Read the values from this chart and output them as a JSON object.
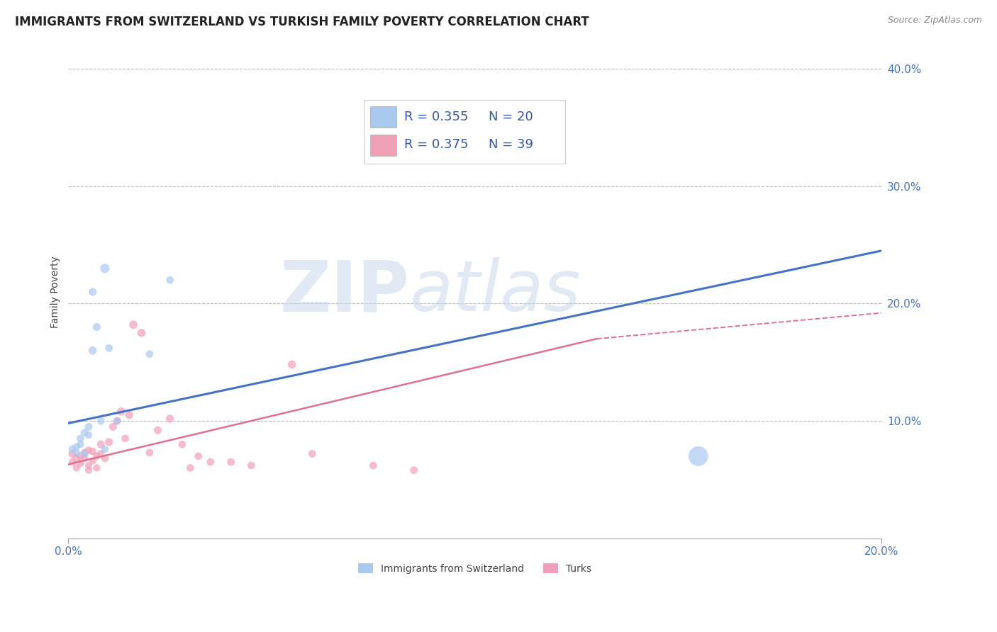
{
  "title": "IMMIGRANTS FROM SWITZERLAND VS TURKISH FAMILY POVERTY CORRELATION CHART",
  "source": "Source: ZipAtlas.com",
  "ylabel": "Family Poverty",
  "xlim": [
    0.0,
    0.2
  ],
  "ylim": [
    0.0,
    0.42
  ],
  "yticks": [
    0.0,
    0.1,
    0.2,
    0.3,
    0.4
  ],
  "ytick_labels": [
    "",
    "10.0%",
    "20.0%",
    "30.0%",
    "40.0%"
  ],
  "xticks": [
    0.0,
    0.2
  ],
  "xtick_labels": [
    "0.0%",
    "20.0%"
  ],
  "legend_r1": "R = 0.355",
  "legend_n1": "N = 20",
  "legend_r2": "R = 0.375",
  "legend_n2": "N = 39",
  "color_swiss": "#A8C8F0",
  "color_turks": "#F0A0B8",
  "bg_color": "#FFFFFF",
  "grid_color": "#BBBBBB",
  "swiss_scatter_x": [
    0.001,
    0.002,
    0.002,
    0.003,
    0.003,
    0.004,
    0.004,
    0.005,
    0.005,
    0.006,
    0.006,
    0.007,
    0.008,
    0.009,
    0.009,
    0.01,
    0.012,
    0.02,
    0.025,
    0.155
  ],
  "swiss_scatter_y": [
    0.076,
    0.078,
    0.073,
    0.085,
    0.08,
    0.072,
    0.09,
    0.088,
    0.095,
    0.16,
    0.21,
    0.18,
    0.1,
    0.076,
    0.23,
    0.162,
    0.1,
    0.157,
    0.22,
    0.07
  ],
  "swiss_scatter_size": [
    60,
    55,
    55,
    60,
    55,
    60,
    60,
    55,
    60,
    70,
    65,
    65,
    60,
    55,
    90,
    60,
    55,
    60,
    60,
    400
  ],
  "turks_scatter_x": [
    0.001,
    0.001,
    0.002,
    0.002,
    0.003,
    0.003,
    0.004,
    0.004,
    0.005,
    0.005,
    0.005,
    0.006,
    0.006,
    0.007,
    0.007,
    0.008,
    0.008,
    0.009,
    0.01,
    0.011,
    0.012,
    0.013,
    0.014,
    0.015,
    0.016,
    0.018,
    0.02,
    0.022,
    0.025,
    0.028,
    0.03,
    0.032,
    0.035,
    0.04,
    0.045,
    0.055,
    0.06,
    0.075,
    0.085
  ],
  "turks_scatter_y": [
    0.072,
    0.065,
    0.068,
    0.06,
    0.07,
    0.064,
    0.073,
    0.068,
    0.075,
    0.062,
    0.058,
    0.074,
    0.066,
    0.07,
    0.06,
    0.08,
    0.072,
    0.068,
    0.082,
    0.095,
    0.1,
    0.108,
    0.085,
    0.105,
    0.182,
    0.175,
    0.073,
    0.092,
    0.102,
    0.08,
    0.06,
    0.07,
    0.065,
    0.065,
    0.062,
    0.148,
    0.072,
    0.062,
    0.058
  ],
  "turks_scatter_size": [
    65,
    60,
    60,
    55,
    60,
    60,
    60,
    55,
    60,
    55,
    55,
    60,
    55,
    60,
    55,
    65,
    60,
    60,
    65,
    65,
    65,
    70,
    60,
    65,
    75,
    70,
    60,
    65,
    65,
    60,
    60,
    60,
    60,
    60,
    60,
    70,
    60,
    60,
    60
  ],
  "watermark_zip": "ZIP",
  "watermark_atlas": "atlas",
  "title_fontsize": 12,
  "axis_label_fontsize": 10,
  "tick_fontsize": 11,
  "legend_fontsize": 13
}
